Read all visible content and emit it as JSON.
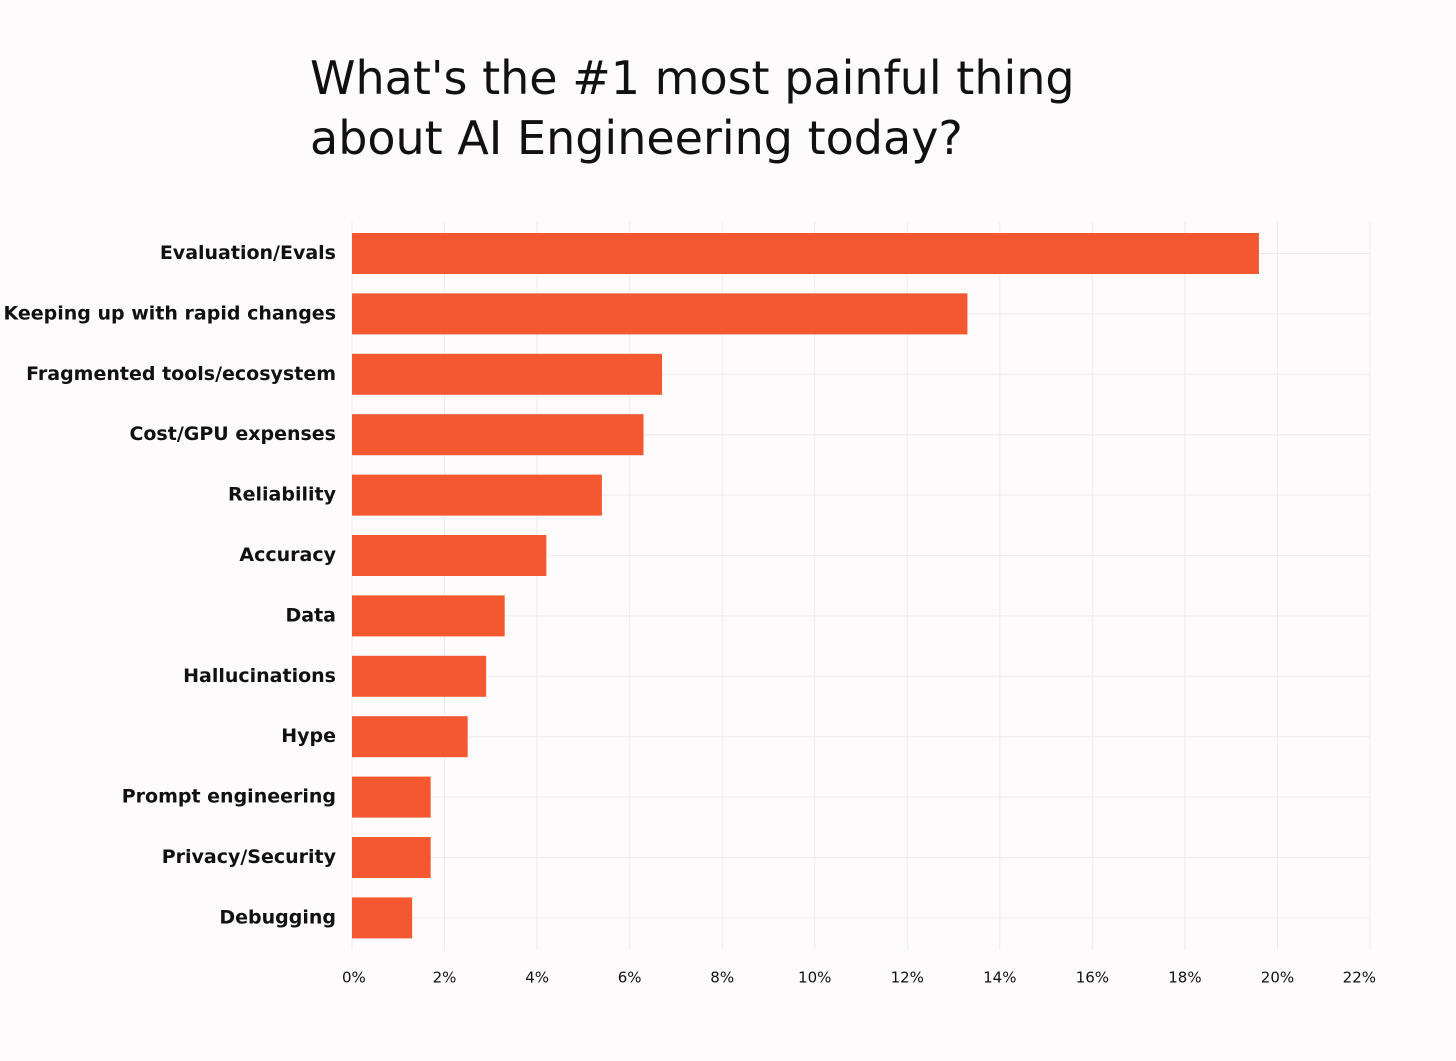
{
  "chart_data": {
    "type": "bar",
    "orientation": "horizontal",
    "title": "What's the #1 most painful thing\nabout AI Engineering today?",
    "xlabel": "",
    "ylabel": "",
    "categories": [
      "Evaluation/Evals",
      "Keeping up with rapid changes",
      "Fragmented tools/ecosystem",
      "Cost/GPU expenses",
      "Reliability",
      "Accuracy",
      "Data",
      "Hallucinations",
      "Hype",
      "Prompt engineering",
      "Privacy/Security",
      "Debugging"
    ],
    "values": [
      19.6,
      13.3,
      6.7,
      6.3,
      5.4,
      4.2,
      3.3,
      2.9,
      2.5,
      1.7,
      1.7,
      1.3
    ],
    "xlim": [
      0,
      22
    ],
    "xticks": [
      0,
      2,
      4,
      6,
      8,
      10,
      12,
      14,
      16,
      18,
      20,
      22
    ],
    "tick_labels": [
      "0%",
      "2%",
      "4%",
      "6%",
      "8%",
      "10%",
      "12%",
      "14%",
      "16%",
      "18%",
      "20%",
      "22%"
    ],
    "grid": true,
    "legend": "none",
    "bar_color": "#f45830",
    "grid_color": "#ececec"
  }
}
